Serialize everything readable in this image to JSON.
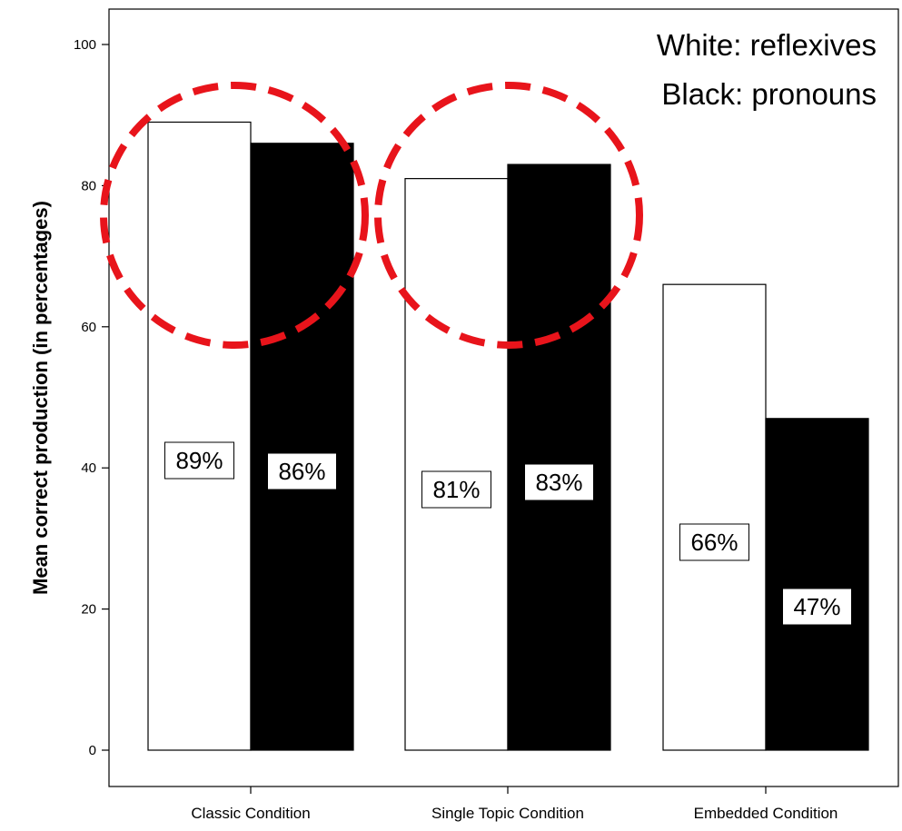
{
  "chart_data": {
    "type": "bar",
    "categories": [
      "Classic Condition",
      "Single Topic Condition",
      "Embedded Condition"
    ],
    "series": [
      {
        "name": "reflexives",
        "color": "#ffffff",
        "values": [
          89,
          81,
          66
        ],
        "labels": [
          "89%",
          "81%",
          "66%"
        ]
      },
      {
        "name": "pronouns",
        "color": "#000000",
        "values": [
          86,
          83,
          47
        ],
        "labels": [
          "86%",
          "83%",
          "47%"
        ]
      }
    ],
    "ylabel": "Mean correct production (in percentages)",
    "xlabel": "",
    "ylim": [
      0,
      100
    ],
    "yticks": [
      0,
      20,
      40,
      60,
      80,
      100
    ],
    "grid": false,
    "legend": {
      "position": "top-right",
      "lines": [
        "White: reflexives",
        "Black: pronouns"
      ]
    },
    "annotations": {
      "highlight": "red dashed circles around Classic and Single Topic conditions",
      "highlight_color": "#e8141b"
    }
  }
}
